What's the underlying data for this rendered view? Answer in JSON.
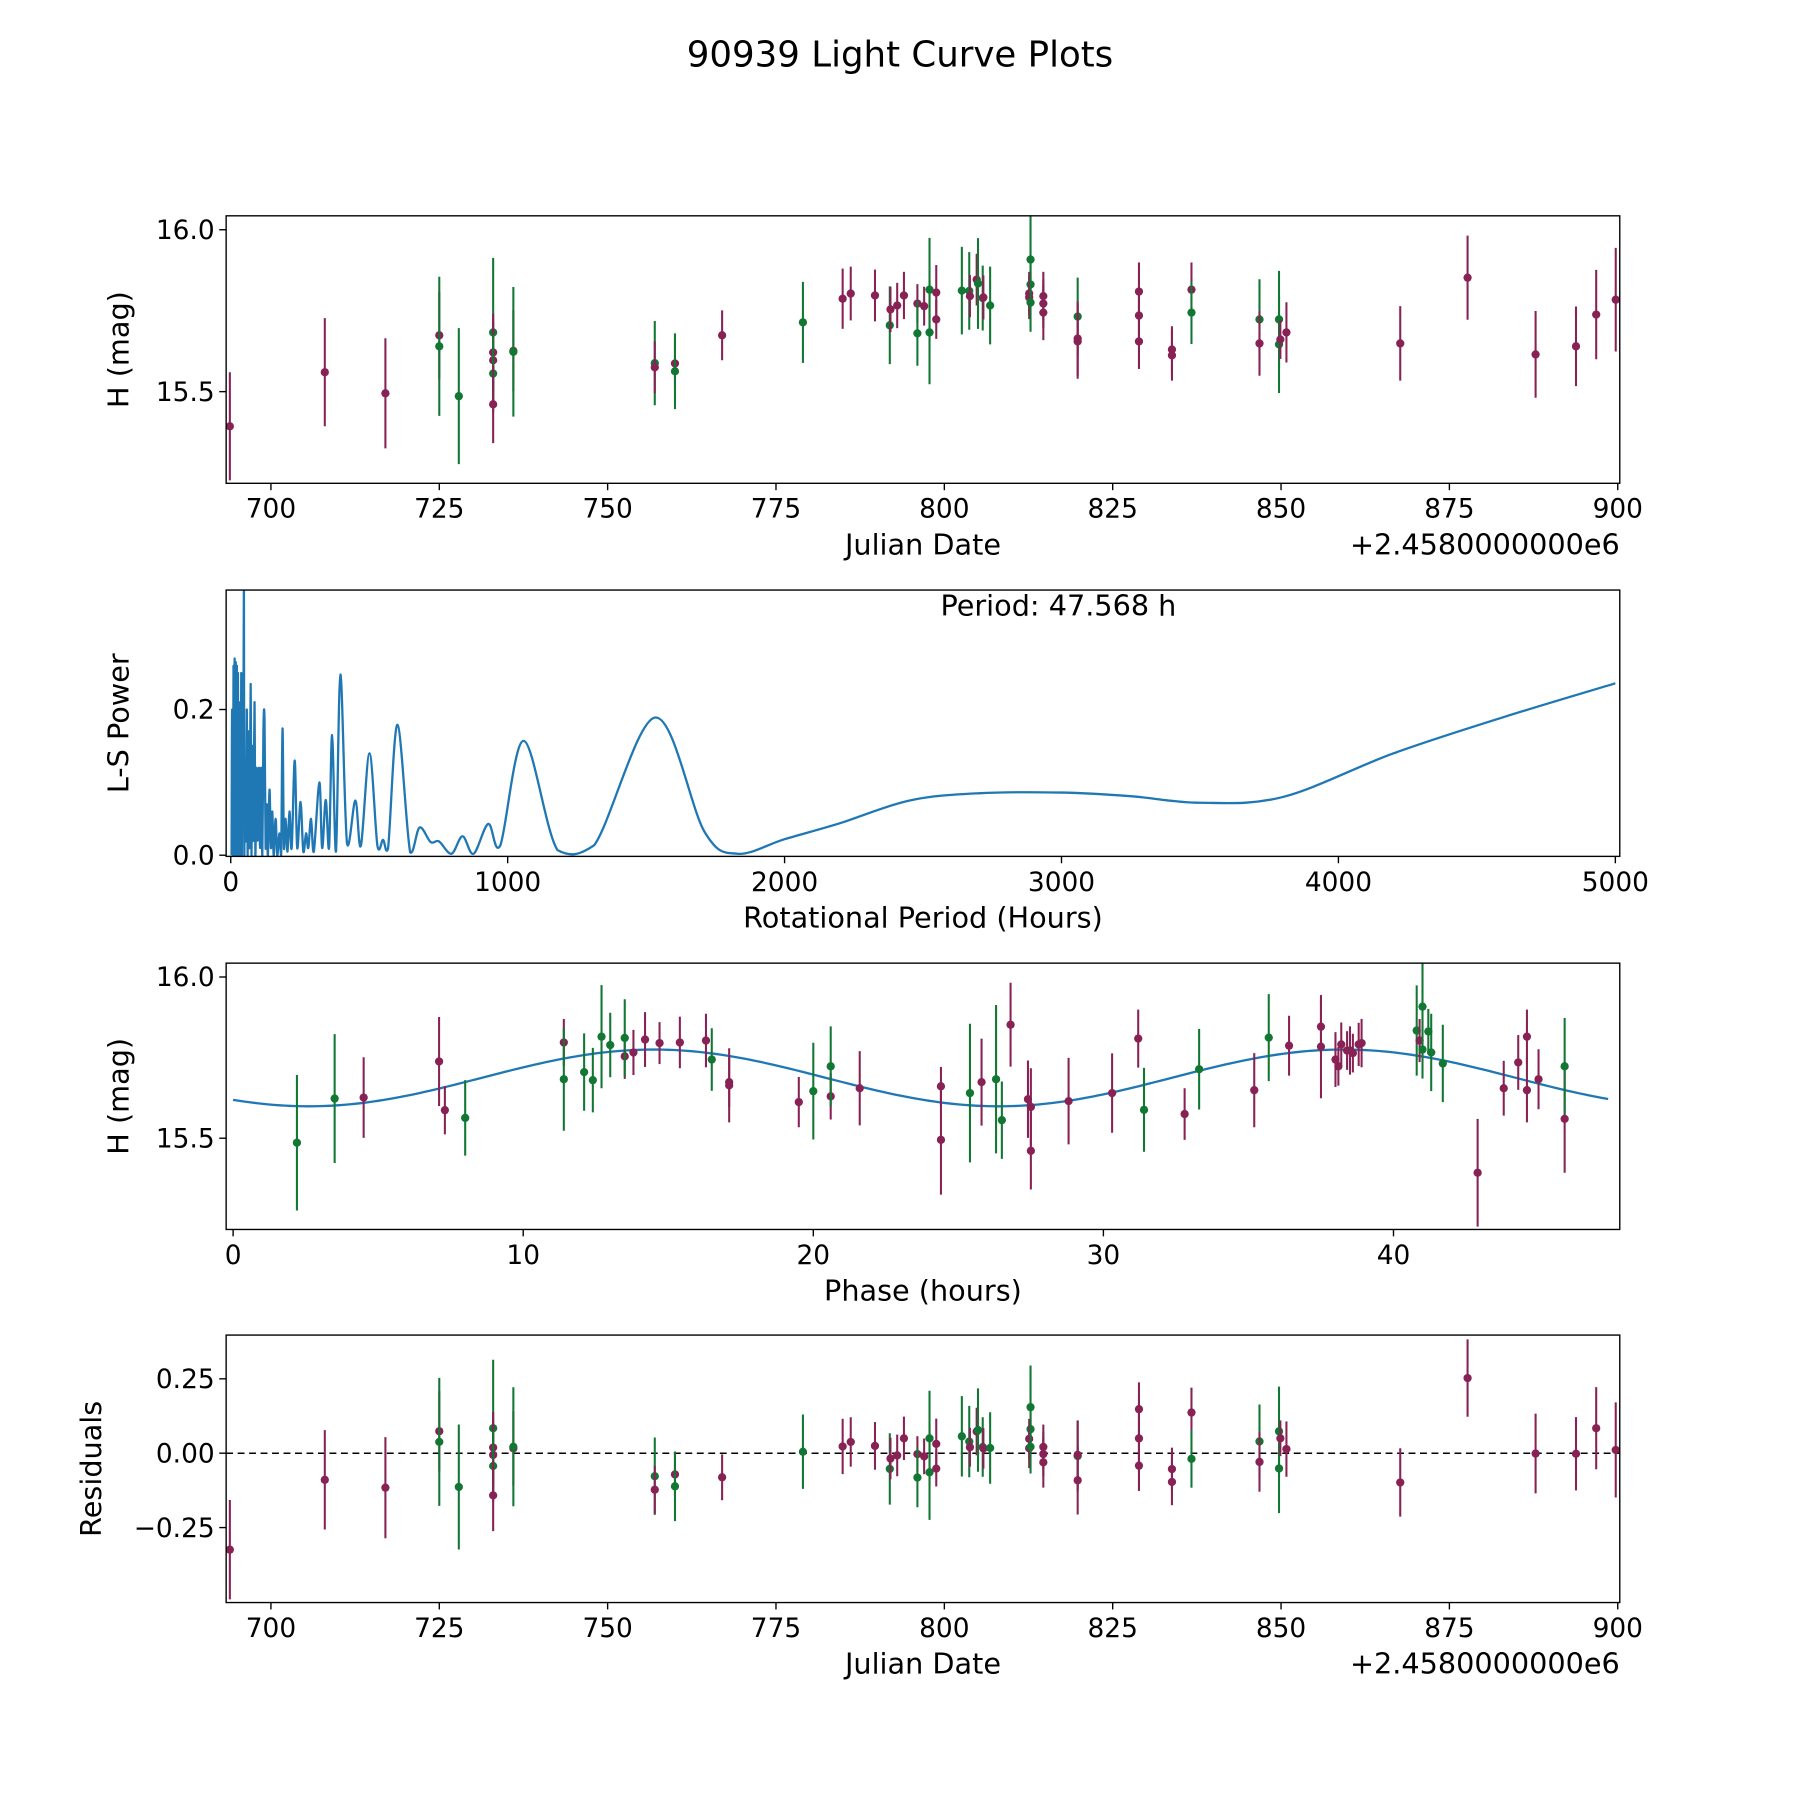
{
  "title": "90939 Light Curve Plots",
  "colors": {
    "magenta": "#882255",
    "green": "#117733",
    "periodogram": "#1f77b4",
    "model": "#1f77b4"
  },
  "chart_data": [
    {
      "id": "lightcurve",
      "type": "scatter",
      "xlabel": "Julian Date",
      "ylabel": "H (mag)",
      "offset_text": "+2.4580000000e6",
      "xlim": [
        693.35,
        900.3
      ],
      "ylim": [
        15.217,
        16.043
      ],
      "xticks": [
        700,
        725,
        750,
        775,
        800,
        825,
        850,
        875,
        900
      ],
      "xtick_labels": [
        "700",
        "725",
        "750",
        "775",
        "800",
        "825",
        "850",
        "875",
        "900"
      ],
      "yticks": [
        15.5,
        16.0
      ],
      "ytick_labels": [
        "15.5",
        "16.0"
      ]
    },
    {
      "id": "periodogram",
      "type": "line",
      "xlabel": "Rotational Period (Hours)",
      "ylabel": "L-S Power",
      "annotation": "Period: 47.568 h",
      "xlim": [
        -16.6,
        5016
      ],
      "ylim": [
        -0.0016,
        0.364
      ],
      "xticks": [
        0,
        1000,
        2000,
        3000,
        4000,
        5000
      ],
      "xtick_labels": [
        "0",
        "1000",
        "2000",
        "3000",
        "4000",
        "5000"
      ],
      "yticks": [
        0.0,
        0.2
      ],
      "ytick_labels": [
        "0.0",
        "0.2"
      ],
      "points": [
        [
          3,
          0.0
        ],
        [
          5,
          0.2
        ],
        [
          8,
          0.0
        ],
        [
          10,
          0.26
        ],
        [
          12,
          0.01
        ],
        [
          14,
          0.27
        ],
        [
          16,
          0.0
        ],
        [
          18,
          0.265
        ],
        [
          20,
          0.02
        ],
        [
          22,
          0.26
        ],
        [
          24,
          0.0
        ],
        [
          26,
          0.25
        ],
        [
          28,
          0.01
        ],
        [
          30,
          0.21
        ],
        [
          32,
          0.0
        ],
        [
          34,
          0.2
        ],
        [
          36,
          0.03
        ],
        [
          38,
          0.25
        ],
        [
          40,
          0.0
        ],
        [
          42,
          0.15
        ],
        [
          44,
          0.05
        ],
        [
          46,
          0.2
        ],
        [
          47.6,
          0.37
        ],
        [
          49,
          0.0
        ],
        [
          52,
          0.12
        ],
        [
          55,
          0.02
        ],
        [
          58,
          0.2
        ],
        [
          61,
          0.0
        ],
        [
          64,
          0.17
        ],
        [
          67,
          0.01
        ],
        [
          72,
          0.235
        ],
        [
          75,
          0.0
        ],
        [
          78,
          0.15
        ],
        [
          81,
          0.02
        ],
        [
          86,
          0.21
        ],
        [
          89,
          0.0
        ],
        [
          93,
          0.12
        ],
        [
          97,
          0.02
        ],
        [
          102,
          0.12
        ],
        [
          106,
          0.01
        ],
        [
          110,
          0.12
        ],
        [
          114,
          0.0
        ],
        [
          118,
          0.17
        ],
        [
          122,
          0.185
        ],
        [
          126,
          0.01
        ],
        [
          130,
          0.07
        ],
        [
          134,
          0.0
        ],
        [
          140,
          0.09
        ],
        [
          145,
          0.01
        ],
        [
          150,
          0.06
        ],
        [
          155,
          0.0
        ],
        [
          162,
          0.05
        ],
        [
          168,
          0.0
        ],
        [
          176,
          0.03
        ],
        [
          182,
          0.0
        ],
        [
          187,
          0.174
        ],
        [
          192,
          0.01
        ],
        [
          198,
          0.05
        ],
        [
          205,
          0.005
        ],
        [
          212,
          0.06
        ],
        [
          220,
          0.01
        ],
        [
          231,
          0.13
        ],
        [
          240,
          0.01
        ],
        [
          252,
          0.073
        ],
        [
          262,
          0.005
        ],
        [
          272,
          0.03
        ],
        [
          280,
          0.01
        ],
        [
          290,
          0.05
        ],
        [
          300,
          0.005
        ],
        [
          320,
          0.1
        ],
        [
          330,
          0.01
        ],
        [
          343,
          0.076
        ],
        [
          355,
          0.01
        ],
        [
          366,
          0.165
        ],
        [
          380,
          0.005
        ],
        [
          396,
          0.248
        ],
        [
          420,
          0.016
        ],
        [
          450,
          0.075
        ],
        [
          470,
          0.013
        ],
        [
          501,
          0.14
        ],
        [
          530,
          0.012
        ],
        [
          550,
          0.021
        ],
        [
          568,
          0.009
        ],
        [
          602,
          0.179
        ],
        [
          648,
          0.004
        ],
        [
          682,
          0.038
        ],
        [
          722,
          0.018
        ],
        [
          752,
          0.019
        ],
        [
          797,
          0.002
        ],
        [
          837,
          0.026
        ],
        [
          877,
          0.002
        ],
        [
          930,
          0.043
        ],
        [
          973,
          0.013
        ],
        [
          1058,
          0.157
        ],
        [
          1180,
          0.007
        ],
        [
          1313,
          0.014
        ],
        [
          1533,
          0.189
        ],
        [
          1711,
          0.032
        ],
        [
          1830,
          0.002
        ],
        [
          2000,
          0.022
        ],
        [
          2200,
          0.044
        ],
        [
          2450,
          0.075
        ],
        [
          2700,
          0.085
        ],
        [
          3000,
          0.086
        ],
        [
          3250,
          0.081
        ],
        [
          3500,
          0.072
        ],
        [
          3800,
          0.08
        ],
        [
          4200,
          0.14
        ],
        [
          4600,
          0.19
        ],
        [
          5000,
          0.236
        ]
      ]
    },
    {
      "id": "phased",
      "type": "scatter",
      "xlabel": "Phase (hours)",
      "ylabel": "H (mag)",
      "xlim": [
        -0.24,
        47.8
      ],
      "ylim": [
        15.217,
        16.043
      ],
      "xticks": [
        0,
        10,
        20,
        30,
        40
      ],
      "xtick_labels": [
        "0",
        "10",
        "20",
        "30",
        "40"
      ],
      "yticks": [
        15.5,
        16.0
      ],
      "ytick_labels": [
        "15.5",
        "16.0"
      ],
      "period_hours": 47.568,
      "model": {
        "mean": 15.687,
        "amplitude": 0.088,
        "peak_phase": 14.5,
        "harmonic_period": 23.784
      }
    },
    {
      "id": "residuals",
      "type": "scatter",
      "xlabel": "Julian Date",
      "ylabel": "Residuals",
      "offset_text": "+2.4580000000e6",
      "xlim": [
        693.35,
        900.3
      ],
      "ylim": [
        -0.502,
        0.397
      ],
      "xticks": [
        700,
        725,
        750,
        775,
        800,
        825,
        850,
        875,
        900
      ],
      "xtick_labels": [
        "700",
        "725",
        "750",
        "775",
        "800",
        "825",
        "850",
        "875",
        "900"
      ],
      "yticks": [
        -0.25,
        0.0,
        0.25
      ],
      "ytick_labels": [
        "−0.25",
        "0.00",
        "0.25"
      ]
    }
  ],
  "observations": [
    {
      "c": "magenta",
      "jd": 693.9,
      "h": 15.393,
      "err": 0.167,
      "phase": 42.9
    },
    {
      "c": "magenta",
      "jd": 708.0,
      "h": 15.56,
      "err": 0.167,
      "phase": 45.9
    },
    {
      "c": "magenta",
      "jd": 717.0,
      "h": 15.495,
      "err": 0.17,
      "phase": 24.4
    },
    {
      "c": "magenta",
      "jd": 725.0,
      "h": 15.674,
      "err": 0.135,
      "phase": 25.8
    },
    {
      "c": "green",
      "jd": 725.0,
      "h": 15.64,
      "err": 0.215,
      "phase": 25.4
    },
    {
      "c": "green",
      "jd": 727.9,
      "h": 15.486,
      "err": 0.21,
      "phase": 2.2
    },
    {
      "c": "green",
      "jd": 733.0,
      "h": 15.683,
      "err": 0.23,
      "phase": 26.3
    },
    {
      "c": "magenta",
      "jd": 733.0,
      "h": 15.621,
      "err": 0.12,
      "phase": 27.4
    },
    {
      "c": "magenta",
      "jd": 733.0,
      "h": 15.597,
      "err": 0.12,
      "phase": 27.5
    },
    {
      "c": "green",
      "jd": 733.0,
      "h": 15.556,
      "err": 0.12,
      "phase": 26.5
    },
    {
      "c": "magenta",
      "jd": 733.0,
      "h": 15.461,
      "err": 0.12,
      "phase": 27.5
    },
    {
      "c": "magenta",
      "jd": 736.0,
      "h": 15.626,
      "err": 0.125,
      "phase": 4.5
    },
    {
      "c": "green",
      "jd": 736.0,
      "h": 15.623,
      "err": 0.2,
      "phase": 3.5
    },
    {
      "c": "green",
      "jd": 757.0,
      "h": 15.588,
      "err": 0.13,
      "phase": 31.4
    },
    {
      "c": "magenta",
      "jd": 757.0,
      "h": 15.575,
      "err": 0.08,
      "phase": 32.8
    },
    {
      "c": "magenta",
      "jd": 760.0,
      "h": 15.587,
      "err": 0.075,
      "phase": 7.3
    },
    {
      "c": "green",
      "jd": 760.0,
      "h": 15.563,
      "err": 0.117,
      "phase": 8.0
    },
    {
      "c": "magenta",
      "jd": 767.0,
      "h": 15.674,
      "err": 0.077,
      "phase": 17.1
    },
    {
      "c": "green",
      "jd": 779.0,
      "h": 15.714,
      "err": 0.125,
      "phase": 33.3
    },
    {
      "c": "magenta",
      "jd": 784.9,
      "h": 15.787,
      "err": 0.093,
      "phase": 36.4
    },
    {
      "c": "magenta",
      "jd": 786.1,
      "h": 15.803,
      "err": 0.083,
      "phase": 16.3
    },
    {
      "c": "magenta",
      "jd": 789.7,
      "h": 15.797,
      "err": 0.08,
      "phase": 15.4
    },
    {
      "c": "green",
      "jd": 791.9,
      "h": 15.705,
      "err": 0.12,
      "phase": 12.1
    },
    {
      "c": "magenta",
      "jd": 792.0,
      "h": 15.754,
      "err": 0.07,
      "phase": 13.5
    },
    {
      "c": "magenta",
      "jd": 793.0,
      "h": 15.766,
      "err": 0.07,
      "phase": 13.8
    },
    {
      "c": "magenta",
      "jd": 794.0,
      "h": 15.797,
      "err": 0.073,
      "phase": 11.4
    },
    {
      "c": "magenta",
      "jd": 796.0,
      "h": 15.772,
      "err": 0.06,
      "phase": 38.4
    },
    {
      "c": "green",
      "jd": 796.0,
      "h": 15.68,
      "err": 0.1,
      "phase": 12.4
    },
    {
      "c": "magenta",
      "jd": 797.0,
      "h": 15.764,
      "err": 0.06,
      "phase": 38.6
    },
    {
      "c": "green",
      "jd": 797.8,
      "h": 15.815,
      "err": 0.16,
      "phase": 12.7
    },
    {
      "c": "green",
      "jd": 797.8,
      "h": 15.683,
      "err": 0.16,
      "phase": 11.4
    },
    {
      "c": "magenta",
      "jd": 798.8,
      "h": 15.806,
      "err": 0.085,
      "phase": 14.2
    },
    {
      "c": "magenta",
      "jd": 798.8,
      "h": 15.723,
      "err": 0.06,
      "phase": 38.1
    },
    {
      "c": "green",
      "jd": 802.6,
      "h": 15.812,
      "err": 0.135,
      "phase": 35.7
    },
    {
      "c": "green",
      "jd": 803.7,
      "h": 15.811,
      "err": 0.12,
      "phase": 13.5
    },
    {
      "c": "magenta",
      "jd": 803.8,
      "h": 15.795,
      "err": 0.065,
      "phase": 14.7
    },
    {
      "c": "magenta",
      "jd": 804.8,
      "h": 15.846,
      "err": 0.08,
      "phase": 37.5
    },
    {
      "c": "green",
      "jd": 805.0,
      "h": 15.834,
      "err": 0.14,
      "phase": 40.8
    },
    {
      "c": "green",
      "jd": 805.7,
      "h": 15.789,
      "err": 0.1,
      "phase": 13.0
    },
    {
      "c": "magenta",
      "jd": 805.8,
      "h": 15.791,
      "err": 0.068,
      "phase": 38.2
    },
    {
      "c": "green",
      "jd": 806.8,
      "h": 15.766,
      "err": 0.12,
      "phase": 41.3
    },
    {
      "c": "green",
      "jd": 812.8,
      "h": 15.908,
      "err": 0.14,
      "phase": 41.0
    },
    {
      "c": "green",
      "jd": 812.8,
      "h": 15.831,
      "err": 0.07,
      "phase": 41.2
    },
    {
      "c": "magenta",
      "jd": 812.6,
      "h": 15.803,
      "err": 0.067,
      "phase": 40.9
    },
    {
      "c": "magenta",
      "jd": 812.6,
      "h": 15.791,
      "err": 0.067,
      "phase": 38.8
    },
    {
      "c": "green",
      "jd": 812.8,
      "h": 15.775,
      "err": 0.09,
      "phase": 41.0
    },
    {
      "c": "magenta",
      "jd": 814.7,
      "h": 15.795,
      "err": 0.075,
      "phase": 38.9
    },
    {
      "c": "magenta",
      "jd": 814.7,
      "h": 15.772,
      "err": 0.075,
      "phase": 38.5
    },
    {
      "c": "magenta",
      "jd": 814.7,
      "h": 15.744,
      "err": 0.085,
      "phase": 38.0
    },
    {
      "c": "green",
      "jd": 819.8,
      "h": 15.732,
      "err": 0.12,
      "phase": 41.7
    },
    {
      "c": "magenta",
      "jd": 819.8,
      "h": 15.664,
      "err": 0.115,
      "phase": 17.1
    },
    {
      "c": "magenta",
      "jd": 819.8,
      "h": 15.655,
      "err": 0.115,
      "phase": 21.6
    },
    {
      "c": "magenta",
      "jd": 828.9,
      "h": 15.809,
      "err": 0.09,
      "phase": 31.2
    },
    {
      "c": "magenta",
      "jd": 828.9,
      "h": 15.735,
      "err": 0.085,
      "phase": 44.3
    },
    {
      "c": "magenta",
      "jd": 828.9,
      "h": 15.655,
      "err": 0.085,
      "phase": 43.8
    },
    {
      "c": "magenta",
      "jd": 833.8,
      "h": 15.63,
      "err": 0.072,
      "phase": 20.6
    },
    {
      "c": "magenta",
      "jd": 833.8,
      "h": 15.612,
      "err": 0.078,
      "phase": 19.5
    },
    {
      "c": "magenta",
      "jd": 836.7,
      "h": 15.815,
      "err": 0.084,
      "phase": 44.6
    },
    {
      "c": "green",
      "jd": 836.7,
      "h": 15.744,
      "err": 0.097,
      "phase": 16.5
    },
    {
      "c": "green",
      "jd": 846.8,
      "h": 15.723,
      "err": 0.124,
      "phase": 20.6
    },
    {
      "c": "magenta",
      "jd": 846.8,
      "h": 15.649,
      "err": 0.1,
      "phase": 44.6
    },
    {
      "c": "green",
      "jd": 849.7,
      "h": 15.723,
      "err": 0.15,
      "phase": 45.9
    },
    {
      "c": "green",
      "jd": 849.7,
      "h": 15.646,
      "err": 0.15,
      "phase": 20.0
    },
    {
      "c": "magenta",
      "jd": 849.9,
      "h": 15.661,
      "err": 0.06,
      "phase": 24.4
    },
    {
      "c": "magenta",
      "jd": 850.8,
      "h": 15.683,
      "err": 0.093,
      "phase": 45.0
    },
    {
      "c": "magenta",
      "jd": 867.7,
      "h": 15.649,
      "err": 0.115,
      "phase": 35.2
    },
    {
      "c": "magenta",
      "jd": 877.7,
      "h": 15.852,
      "err": 0.13,
      "phase": 26.8
    },
    {
      "c": "magenta",
      "jd": 887.8,
      "h": 15.615,
      "err": 0.134,
      "phase": 28.8
    },
    {
      "c": "magenta",
      "jd": 893.8,
      "h": 15.64,
      "err": 0.123,
      "phase": 30.3
    },
    {
      "c": "magenta",
      "jd": 896.8,
      "h": 15.738,
      "err": 0.138,
      "phase": 7.1
    },
    {
      "c": "magenta",
      "jd": 899.7,
      "h": 15.784,
      "err": 0.16,
      "phase": 37.5
    }
  ]
}
